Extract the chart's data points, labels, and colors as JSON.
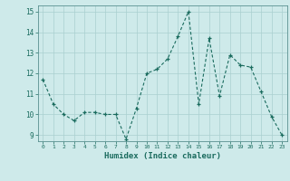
{
  "x": [
    0,
    1,
    2,
    3,
    4,
    5,
    6,
    7,
    8,
    9,
    10,
    11,
    12,
    13,
    14,
    15,
    16,
    17,
    18,
    19,
    20,
    21,
    22,
    23
  ],
  "y": [
    11.7,
    10.5,
    10.0,
    9.7,
    10.1,
    10.1,
    10.0,
    10.0,
    8.8,
    10.3,
    12.0,
    12.2,
    12.7,
    13.8,
    15.0,
    10.5,
    13.7,
    10.9,
    12.9,
    12.4,
    12.3,
    11.1,
    9.9,
    9.0
  ],
  "xlabel": "Humidex (Indice chaleur)",
  "ylim": [
    8.7,
    15.3
  ],
  "xlim": [
    -0.5,
    23.5
  ],
  "yticks": [
    9,
    10,
    11,
    12,
    13,
    14,
    15
  ],
  "xticks": [
    0,
    1,
    2,
    3,
    4,
    5,
    6,
    7,
    8,
    9,
    10,
    11,
    12,
    13,
    14,
    15,
    16,
    17,
    18,
    19,
    20,
    21,
    22,
    23
  ],
  "line_color": "#1a6b5e",
  "marker_color": "#1a6b5e",
  "bg_color": "#ceeaea",
  "grid_color": "#aacfcf",
  "axis_color": "#5a9090",
  "tick_color": "#1a6b5e",
  "label_color": "#1a6b5e"
}
